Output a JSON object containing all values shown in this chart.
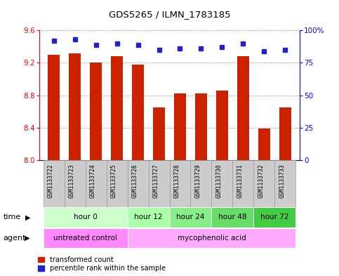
{
  "title": "GDS5265 / ILMN_1783185",
  "samples": [
    "GSM1133722",
    "GSM1133723",
    "GSM1133724",
    "GSM1133725",
    "GSM1133726",
    "GSM1133727",
    "GSM1133728",
    "GSM1133729",
    "GSM1133730",
    "GSM1133731",
    "GSM1133732",
    "GSM1133733"
  ],
  "transformed_counts": [
    9.3,
    9.32,
    9.2,
    9.28,
    9.18,
    8.65,
    8.82,
    8.82,
    8.86,
    9.28,
    8.39,
    8.65
  ],
  "percentile_ranks": [
    92,
    93,
    89,
    90,
    89,
    85,
    86,
    86,
    87,
    90,
    84,
    85
  ],
  "ylim_left": [
    8.0,
    9.6
  ],
  "ylim_right": [
    0,
    100
  ],
  "yticks_left": [
    8.0,
    8.4,
    8.8,
    9.2,
    9.6
  ],
  "yticks_right": [
    0,
    25,
    50,
    75,
    100
  ],
  "bar_color": "#cc2200",
  "dot_color": "#2222cc",
  "time_groups": [
    {
      "label": "hour 0",
      "start": 0,
      "end": 4,
      "color": "#ccffcc"
    },
    {
      "label": "hour 12",
      "start": 4,
      "end": 6,
      "color": "#aaffaa"
    },
    {
      "label": "hour 24",
      "start": 6,
      "end": 8,
      "color": "#88ee88"
    },
    {
      "label": "hour 48",
      "start": 8,
      "end": 10,
      "color": "#66dd66"
    },
    {
      "label": "hour 72",
      "start": 10,
      "end": 12,
      "color": "#44cc44"
    }
  ],
  "agent_groups": [
    {
      "label": "untreated control",
      "start": 0,
      "end": 4,
      "color": "#ff88ff"
    },
    {
      "label": "mycophenolic acid",
      "start": 4,
      "end": 12,
      "color": "#ffaaff"
    }
  ],
  "background_color": "#ffffff",
  "panel_color": "#cccccc",
  "panel_border": "#999999"
}
